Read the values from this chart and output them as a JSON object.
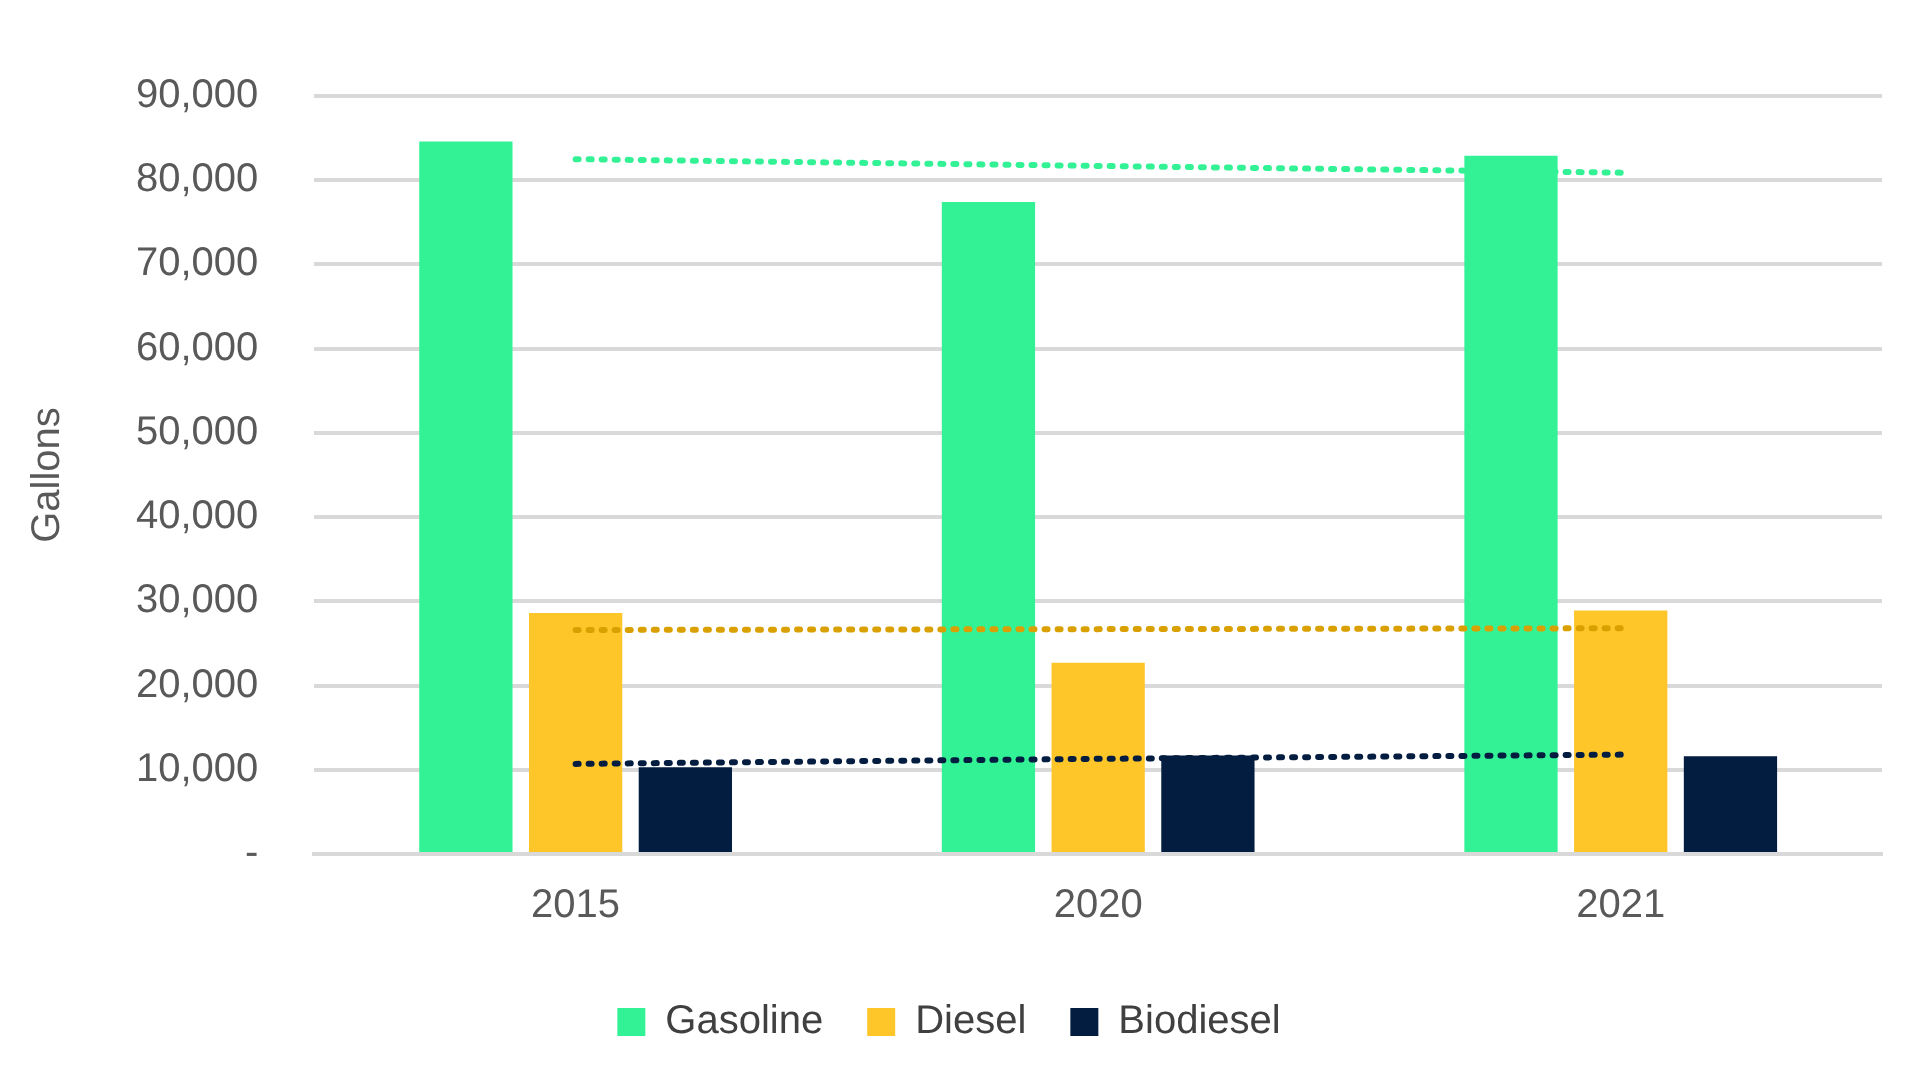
{
  "chart_data": {
    "type": "bar",
    "ylabel": "Gallons",
    "categories": [
      "2015",
      "2020",
      "2021"
    ],
    "series": [
      {
        "name": "Gasoline",
        "color": "#33f296",
        "values": [
          84600,
          77400,
          82900
        ]
      },
      {
        "name": "Diesel",
        "color": "#ffc629",
        "values": [
          28600,
          22700,
          28900
        ]
      },
      {
        "name": "Biodiesel",
        "color": "#031d40",
        "values": [
          10300,
          11700,
          11600
        ]
      },
      {
        "type": "line",
        "color": "#33f296",
        "line_style": "dotted",
        "marker": "none",
        "values": [
          82500,
          81700,
          80900
        ]
      },
      {
        "type": "line",
        "color": "#d9a000",
        "line_style": "dotted",
        "marker": "none",
        "values": [
          26600,
          26700,
          26800
        ]
      },
      {
        "type": "line",
        "color": "#031d40",
        "line_style": "dotted",
        "marker": "none",
        "values": [
          10700,
          11300,
          11800
        ]
      }
    ],
    "ylim": [
      0,
      90000
    ],
    "yticks": [
      {
        "value": 0,
        "label": "-"
      },
      {
        "value": 10000,
        "label": "10,000"
      },
      {
        "value": 20000,
        "label": "20,000"
      },
      {
        "value": 30000,
        "label": "30,000"
      },
      {
        "value": 40000,
        "label": "40,000"
      },
      {
        "value": 50000,
        "label": "50,000"
      },
      {
        "value": 60000,
        "label": "60,000"
      },
      {
        "value": 70000,
        "label": "70,000"
      },
      {
        "value": 80000,
        "label": "80,000"
      },
      {
        "value": 90000,
        "label": "90,000"
      }
    ],
    "grid": "y",
    "legend": "bottom"
  }
}
